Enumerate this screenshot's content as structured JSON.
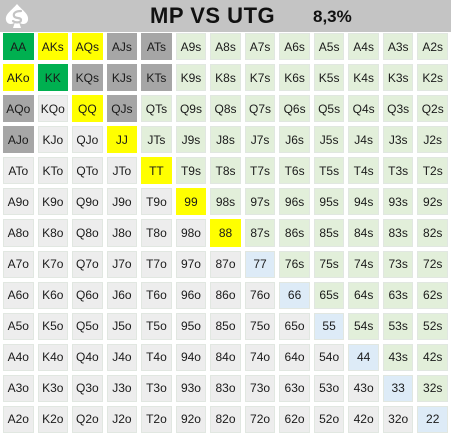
{
  "header": {
    "title": "MP VS UTG",
    "percent": "8,3%",
    "logo_icon": "spade-s-logo-icon"
  },
  "legend_colors": {
    "green": "#00b050",
    "yellow": "#ffff00",
    "grey": "#a6a6a6",
    "suited_default": "#e2efda",
    "offsuit_default": "#ededed",
    "pair_default": "#ddebf7"
  },
  "grid": {
    "rows": [
      [
        {
          "label": "AA",
          "color": "green"
        },
        {
          "label": "AKs",
          "color": "yellow"
        },
        {
          "label": "AQs",
          "color": "yellow"
        },
        {
          "label": "AJs",
          "color": "grey"
        },
        {
          "label": "ATs",
          "color": "grey"
        },
        {
          "label": "A9s",
          "color": "s"
        },
        {
          "label": "A8s",
          "color": "s"
        },
        {
          "label": "A7s",
          "color": "s"
        },
        {
          "label": "A6s",
          "color": "s"
        },
        {
          "label": "A5s",
          "color": "s"
        },
        {
          "label": "A4s",
          "color": "s"
        },
        {
          "label": "A3s",
          "color": "s"
        },
        {
          "label": "A2s",
          "color": "s"
        }
      ],
      [
        {
          "label": "AKo",
          "color": "yellow"
        },
        {
          "label": "KK",
          "color": "green"
        },
        {
          "label": "KQs",
          "color": "grey"
        },
        {
          "label": "KJs",
          "color": "grey"
        },
        {
          "label": "KTs",
          "color": "grey"
        },
        {
          "label": "K9s",
          "color": "s"
        },
        {
          "label": "K8s",
          "color": "s"
        },
        {
          "label": "K7s",
          "color": "s"
        },
        {
          "label": "K6s",
          "color": "s"
        },
        {
          "label": "K5s",
          "color": "s"
        },
        {
          "label": "K4s",
          "color": "s"
        },
        {
          "label": "K3s",
          "color": "s"
        },
        {
          "label": "K2s",
          "color": "s"
        }
      ],
      [
        {
          "label": "AQo",
          "color": "grey"
        },
        {
          "label": "KQo",
          "color": "o"
        },
        {
          "label": "QQ",
          "color": "yellow"
        },
        {
          "label": "QJs",
          "color": "grey"
        },
        {
          "label": "QTs",
          "color": "s"
        },
        {
          "label": "Q9s",
          "color": "s"
        },
        {
          "label": "Q8s",
          "color": "s"
        },
        {
          "label": "Q7s",
          "color": "s"
        },
        {
          "label": "Q6s",
          "color": "s"
        },
        {
          "label": "Q5s",
          "color": "s"
        },
        {
          "label": "Q4s",
          "color": "s"
        },
        {
          "label": "Q3s",
          "color": "s"
        },
        {
          "label": "Q2s",
          "color": "s"
        }
      ],
      [
        {
          "label": "AJo",
          "color": "grey"
        },
        {
          "label": "KJo",
          "color": "o"
        },
        {
          "label": "QJo",
          "color": "o"
        },
        {
          "label": "JJ",
          "color": "yellow"
        },
        {
          "label": "JTs",
          "color": "s"
        },
        {
          "label": "J9s",
          "color": "s"
        },
        {
          "label": "J8s",
          "color": "s"
        },
        {
          "label": "J7s",
          "color": "s"
        },
        {
          "label": "J6s",
          "color": "s"
        },
        {
          "label": "J5s",
          "color": "s"
        },
        {
          "label": "J4s",
          "color": "s"
        },
        {
          "label": "J3s",
          "color": "s"
        },
        {
          "label": "J2s",
          "color": "s"
        }
      ],
      [
        {
          "label": "ATo",
          "color": "o"
        },
        {
          "label": "KTo",
          "color": "o"
        },
        {
          "label": "QTo",
          "color": "o"
        },
        {
          "label": "JTo",
          "color": "o"
        },
        {
          "label": "TT",
          "color": "yellow"
        },
        {
          "label": "T9s",
          "color": "s"
        },
        {
          "label": "T8s",
          "color": "s"
        },
        {
          "label": "T7s",
          "color": "s"
        },
        {
          "label": "T6s",
          "color": "s"
        },
        {
          "label": "T5s",
          "color": "s"
        },
        {
          "label": "T4s",
          "color": "s"
        },
        {
          "label": "T3s",
          "color": "s"
        },
        {
          "label": "T2s",
          "color": "s"
        }
      ],
      [
        {
          "label": "A9o",
          "color": "o"
        },
        {
          "label": "K9o",
          "color": "o"
        },
        {
          "label": "Q9o",
          "color": "o"
        },
        {
          "label": "J9o",
          "color": "o"
        },
        {
          "label": "T9o",
          "color": "o"
        },
        {
          "label": "99",
          "color": "yellow"
        },
        {
          "label": "98s",
          "color": "s"
        },
        {
          "label": "97s",
          "color": "s"
        },
        {
          "label": "96s",
          "color": "s"
        },
        {
          "label": "95s",
          "color": "s"
        },
        {
          "label": "94s",
          "color": "s"
        },
        {
          "label": "93s",
          "color": "s"
        },
        {
          "label": "92s",
          "color": "s"
        }
      ],
      [
        {
          "label": "A8o",
          "color": "o"
        },
        {
          "label": "K8o",
          "color": "o"
        },
        {
          "label": "Q8o",
          "color": "o"
        },
        {
          "label": "J8o",
          "color": "o"
        },
        {
          "label": "T8o",
          "color": "o"
        },
        {
          "label": "98o",
          "color": "o"
        },
        {
          "label": "88",
          "color": "yellow"
        },
        {
          "label": "87s",
          "color": "s"
        },
        {
          "label": "86s",
          "color": "s"
        },
        {
          "label": "85s",
          "color": "s"
        },
        {
          "label": "84s",
          "color": "s"
        },
        {
          "label": "83s",
          "color": "s"
        },
        {
          "label": "82s",
          "color": "s"
        }
      ],
      [
        {
          "label": "A7o",
          "color": "o"
        },
        {
          "label": "K7o",
          "color": "o"
        },
        {
          "label": "Q7o",
          "color": "o"
        },
        {
          "label": "J7o",
          "color": "o"
        },
        {
          "label": "T7o",
          "color": "o"
        },
        {
          "label": "97o",
          "color": "o"
        },
        {
          "label": "87o",
          "color": "o"
        },
        {
          "label": "77",
          "color": "p"
        },
        {
          "label": "76s",
          "color": "s"
        },
        {
          "label": "75s",
          "color": "s"
        },
        {
          "label": "74s",
          "color": "s"
        },
        {
          "label": "73s",
          "color": "s"
        },
        {
          "label": "72s",
          "color": "s"
        }
      ],
      [
        {
          "label": "A6o",
          "color": "o"
        },
        {
          "label": "K6o",
          "color": "o"
        },
        {
          "label": "Q6o",
          "color": "o"
        },
        {
          "label": "J6o",
          "color": "o"
        },
        {
          "label": "T6o",
          "color": "o"
        },
        {
          "label": "96o",
          "color": "o"
        },
        {
          "label": "86o",
          "color": "o"
        },
        {
          "label": "76o",
          "color": "o"
        },
        {
          "label": "66",
          "color": "p"
        },
        {
          "label": "65s",
          "color": "s"
        },
        {
          "label": "64s",
          "color": "s"
        },
        {
          "label": "63s",
          "color": "s"
        },
        {
          "label": "62s",
          "color": "s"
        }
      ],
      [
        {
          "label": "A5o",
          "color": "o"
        },
        {
          "label": "K5o",
          "color": "o"
        },
        {
          "label": "Q5o",
          "color": "o"
        },
        {
          "label": "J5o",
          "color": "o"
        },
        {
          "label": "T5o",
          "color": "o"
        },
        {
          "label": "95o",
          "color": "o"
        },
        {
          "label": "85o",
          "color": "o"
        },
        {
          "label": "75o",
          "color": "o"
        },
        {
          "label": "65o",
          "color": "o"
        },
        {
          "label": "55",
          "color": "p"
        },
        {
          "label": "54s",
          "color": "s"
        },
        {
          "label": "53s",
          "color": "s"
        },
        {
          "label": "52s",
          "color": "s"
        }
      ],
      [
        {
          "label": "A4o",
          "color": "o"
        },
        {
          "label": "K4o",
          "color": "o"
        },
        {
          "label": "Q4o",
          "color": "o"
        },
        {
          "label": "J4o",
          "color": "o"
        },
        {
          "label": "T4o",
          "color": "o"
        },
        {
          "label": "94o",
          "color": "o"
        },
        {
          "label": "84o",
          "color": "o"
        },
        {
          "label": "74o",
          "color": "o"
        },
        {
          "label": "64o",
          "color": "o"
        },
        {
          "label": "54o",
          "color": "o"
        },
        {
          "label": "44",
          "color": "p"
        },
        {
          "label": "43s",
          "color": "s"
        },
        {
          "label": "42s",
          "color": "s"
        }
      ],
      [
        {
          "label": "A3o",
          "color": "o"
        },
        {
          "label": "K3o",
          "color": "o"
        },
        {
          "label": "Q3o",
          "color": "o"
        },
        {
          "label": "J3o",
          "color": "o"
        },
        {
          "label": "T3o",
          "color": "o"
        },
        {
          "label": "93o",
          "color": "o"
        },
        {
          "label": "83o",
          "color": "o"
        },
        {
          "label": "73o",
          "color": "o"
        },
        {
          "label": "63o",
          "color": "o"
        },
        {
          "label": "53o",
          "color": "o"
        },
        {
          "label": "43o",
          "color": "o"
        },
        {
          "label": "33",
          "color": "p"
        },
        {
          "label": "32s",
          "color": "s"
        }
      ],
      [
        {
          "label": "A2o",
          "color": "o"
        },
        {
          "label": "K2o",
          "color": "o"
        },
        {
          "label": "Q2o",
          "color": "o"
        },
        {
          "label": "J2o",
          "color": "o"
        },
        {
          "label": "T2o",
          "color": "o"
        },
        {
          "label": "92o",
          "color": "o"
        },
        {
          "label": "82o",
          "color": "o"
        },
        {
          "label": "72o",
          "color": "o"
        },
        {
          "label": "62o",
          "color": "o"
        },
        {
          "label": "52o",
          "color": "o"
        },
        {
          "label": "42o",
          "color": "o"
        },
        {
          "label": "32o",
          "color": "o"
        },
        {
          "label": "22",
          "color": "p"
        }
      ]
    ]
  }
}
